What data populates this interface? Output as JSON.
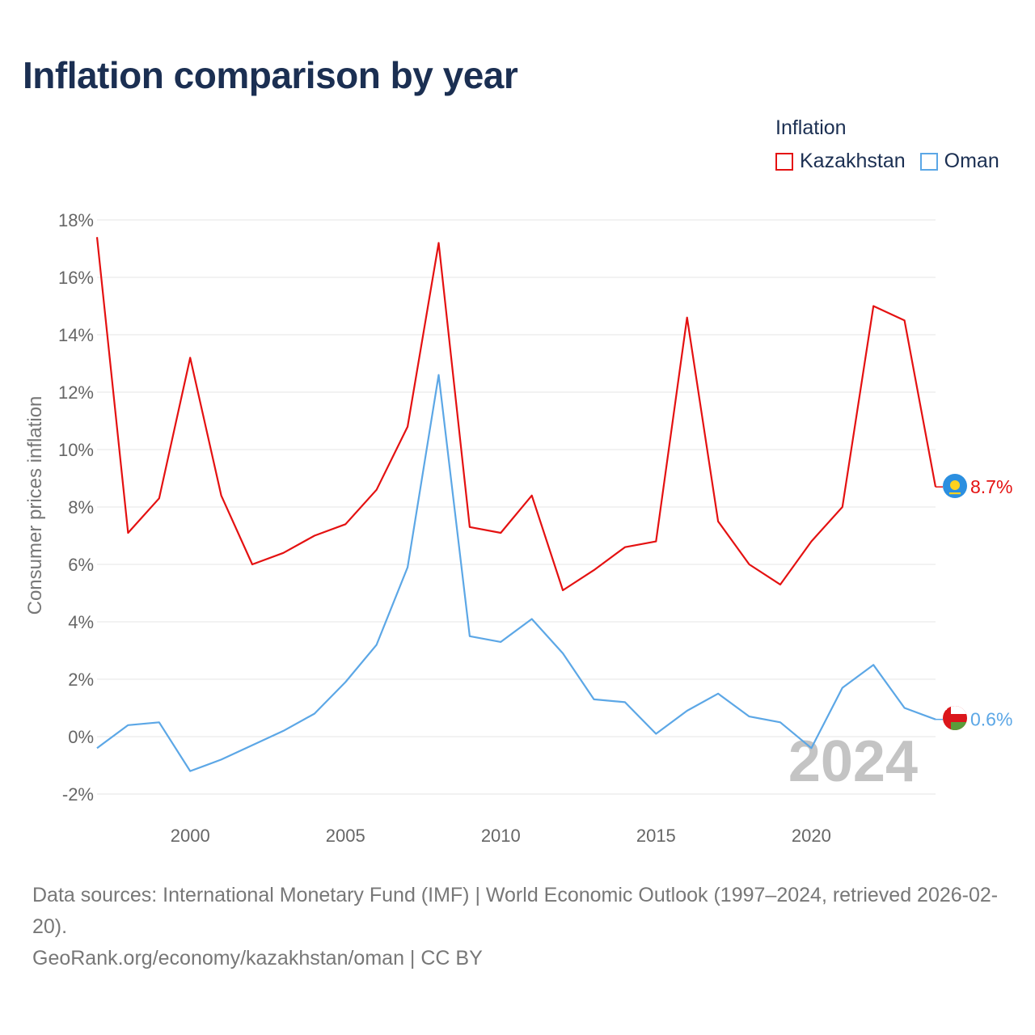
{
  "title": "Inflation comparison by year",
  "legend": {
    "title": "Inflation",
    "items": [
      {
        "label": "Kazakhstan",
        "color": "#e41111"
      },
      {
        "label": "Oman",
        "color": "#5ca7e6"
      }
    ]
  },
  "chart_data": {
    "type": "line",
    "title": "Inflation comparison by year",
    "xlabel": "",
    "ylabel": "Consumer prices inflation",
    "x": [
      1997,
      1998,
      1999,
      2000,
      2001,
      2002,
      2003,
      2004,
      2005,
      2006,
      2007,
      2008,
      2009,
      2010,
      2011,
      2012,
      2013,
      2014,
      2015,
      2016,
      2017,
      2018,
      2019,
      2020,
      2021,
      2022,
      2023,
      2024
    ],
    "xlim": [
      1997,
      2024
    ],
    "ylim": [
      -2,
      18
    ],
    "x_ticks": [
      2000,
      2005,
      2010,
      2015,
      2020
    ],
    "x_tick_labels": [
      "2000",
      "2005",
      "2010",
      "2015",
      "2020"
    ],
    "y_ticks": [
      -2,
      0,
      2,
      4,
      6,
      8,
      10,
      12,
      14,
      16,
      18
    ],
    "y_tick_labels": [
      "-2%",
      "0%",
      "2%",
      "4%",
      "6%",
      "8%",
      "10%",
      "12%",
      "14%",
      "16%",
      "18%"
    ],
    "grid": true,
    "series": [
      {
        "name": "Kazakhstan",
        "color": "#e41111",
        "icon": "kazakhstan-flag-icon",
        "end_label": "8.7%",
        "values": [
          17.4,
          7.1,
          8.3,
          13.2,
          8.4,
          6.0,
          6.4,
          7.0,
          7.4,
          8.6,
          10.8,
          17.2,
          7.3,
          7.1,
          8.4,
          5.1,
          5.8,
          6.6,
          6.8,
          14.6,
          7.5,
          6.0,
          5.3,
          6.8,
          8.0,
          15.0,
          14.5,
          8.7
        ]
      },
      {
        "name": "Oman",
        "color": "#5ca7e6",
        "icon": "oman-flag-icon",
        "end_label": "0.6%",
        "values": [
          -0.4,
          0.4,
          0.5,
          -1.2,
          -0.8,
          -0.3,
          0.2,
          0.8,
          1.9,
          3.2,
          5.9,
          12.6,
          3.5,
          3.3,
          4.1,
          2.9,
          1.3,
          1.2,
          0.1,
          0.9,
          1.5,
          0.7,
          0.5,
          -0.4,
          1.7,
          2.5,
          1.0,
          0.6
        ]
      }
    ],
    "annotation": "2024"
  },
  "footer": {
    "sources": "Data sources: International Monetary Fund (IMF) | World Economic Outlook (1997–2024, retrieved 2026-02-20).",
    "credit": "GeoRank.org/economy/kazakhstan/oman | CC BY"
  }
}
